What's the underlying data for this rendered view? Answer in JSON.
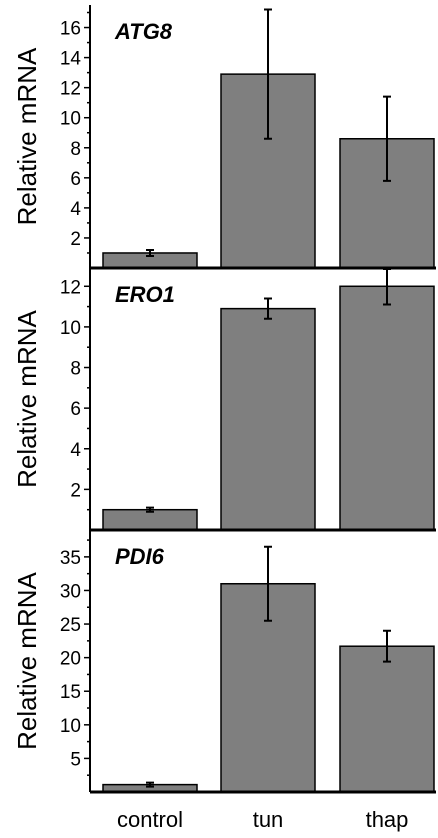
{
  "chart_data": [
    {
      "type": "bar",
      "title": "ATG8",
      "ylabel": "Relative mRNA",
      "categories": [
        "control",
        "tun",
        "thap"
      ],
      "values": [
        1.0,
        12.9,
        8.6
      ],
      "errors": [
        0.2,
        4.3,
        2.8
      ],
      "ylim": [
        0,
        17.5
      ],
      "yticks": [
        2,
        4,
        6,
        8,
        10,
        12,
        14,
        16
      ],
      "bar_color": "#7f7f7f"
    },
    {
      "type": "bar",
      "title": "ERO1",
      "ylabel": "Relative mRNA",
      "categories": [
        "control",
        "tun",
        "thap"
      ],
      "values": [
        1.0,
        10.9,
        12.0
      ],
      "errors": [
        0.1,
        0.5,
        0.9
      ],
      "ylim": [
        0,
        12.9
      ],
      "yticks": [
        2,
        4,
        6,
        8,
        10,
        12
      ],
      "bar_color": "#7f7f7f"
    },
    {
      "type": "bar",
      "title": "PDI6",
      "ylabel": "Relative mRNA",
      "categories": [
        "control",
        "tun",
        "thap"
      ],
      "values": [
        1.1,
        31.0,
        21.7
      ],
      "errors": [
        0.3,
        5.5,
        2.3
      ],
      "ylim": [
        0,
        39
      ],
      "yticks": [
        5,
        10,
        15,
        20,
        25,
        30,
        35
      ],
      "bar_color": "#7f7f7f"
    }
  ],
  "x_axis_labels": [
    "control",
    "tun",
    "thap"
  ]
}
